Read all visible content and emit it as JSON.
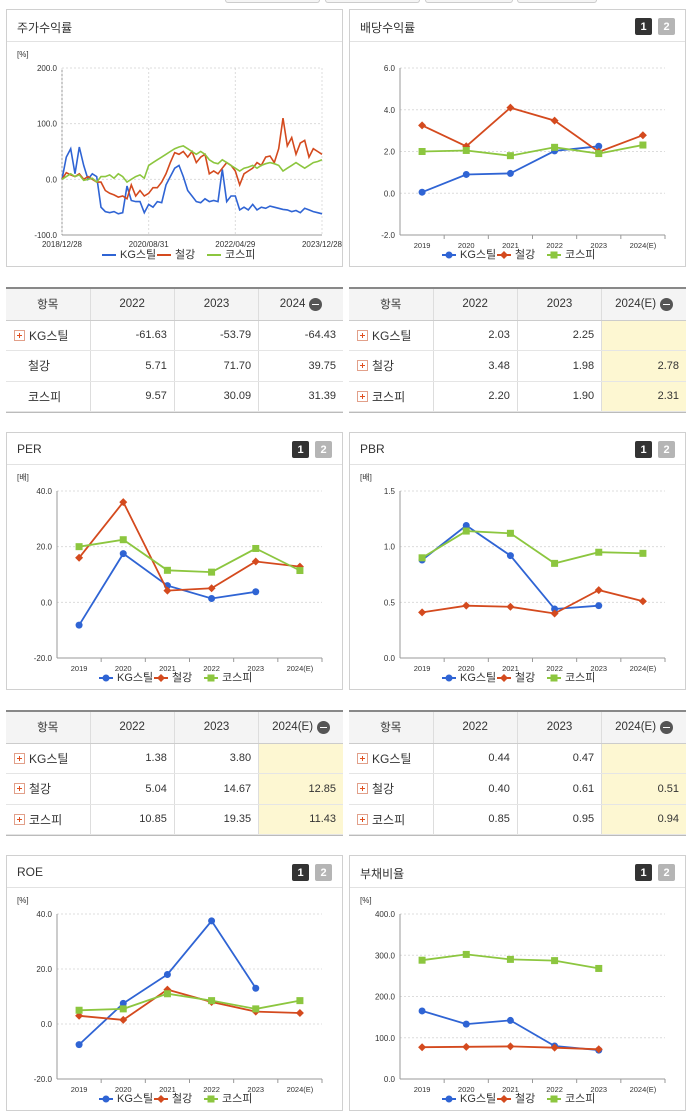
{
  "series_legend": [
    "KG스틸",
    "철강",
    "코스피"
  ],
  "colors": {
    "KG스틸": "#2f64d4",
    "철강": "#d44a1e",
    "코스피": "#8cc63f"
  },
  "panels": {
    "stock": {
      "title": "주가수익률"
    },
    "dividend": {
      "title": "배당수익률",
      "pages": [
        "1",
        "2"
      ]
    },
    "per": {
      "title": "PER",
      "pages": [
        "1",
        "2"
      ]
    },
    "pbr": {
      "title": "PBR",
      "pages": [
        "1",
        "2"
      ]
    },
    "roe": {
      "title": "ROE",
      "pages": [
        "1",
        "2"
      ]
    },
    "debt": {
      "title": "부채비율",
      "pages": [
        "1",
        "2"
      ]
    }
  },
  "tables": {
    "stock": {
      "headers": [
        "항목",
        "2022",
        "2023",
        "2024"
      ],
      "rows": [
        {
          "name": "KG스틸",
          "plus": true,
          "values": [
            "-61.63",
            "-53.79",
            "-64.43"
          ],
          "hl": false
        },
        {
          "name": "철강",
          "plus": false,
          "values": [
            "5.71",
            "71.70",
            "39.75"
          ],
          "hl": false
        },
        {
          "name": "코스피",
          "plus": false,
          "values": [
            "9.57",
            "30.09",
            "31.39"
          ],
          "hl": false
        }
      ]
    },
    "dividend": {
      "headers": [
        "항목",
        "2022",
        "2023",
        "2024(E)"
      ],
      "rows": [
        {
          "name": "KG스틸",
          "plus": true,
          "values": [
            "2.03",
            "2.25",
            ""
          ],
          "hl": true
        },
        {
          "name": "철강",
          "plus": true,
          "values": [
            "3.48",
            "1.98",
            "2.78"
          ],
          "hl": true
        },
        {
          "name": "코스피",
          "plus": true,
          "values": [
            "2.20",
            "1.90",
            "2.31"
          ],
          "hl": true
        }
      ]
    },
    "per": {
      "headers": [
        "항목",
        "2022",
        "2023",
        "2024(E)"
      ],
      "rows": [
        {
          "name": "KG스틸",
          "plus": true,
          "values": [
            "1.38",
            "3.80",
            ""
          ],
          "hl": true
        },
        {
          "name": "철강",
          "plus": true,
          "values": [
            "5.04",
            "14.67",
            "12.85"
          ],
          "hl": true
        },
        {
          "name": "코스피",
          "plus": true,
          "values": [
            "10.85",
            "19.35",
            "11.43"
          ],
          "hl": true
        }
      ]
    },
    "pbr": {
      "headers": [
        "항목",
        "2022",
        "2023",
        "2024(E)"
      ],
      "rows": [
        {
          "name": "KG스틸",
          "plus": true,
          "values": [
            "0.44",
            "0.47",
            ""
          ],
          "hl": true
        },
        {
          "name": "철강",
          "plus": true,
          "values": [
            "0.40",
            "0.61",
            "0.51"
          ],
          "hl": true
        },
        {
          "name": "코스피",
          "plus": true,
          "values": [
            "0.85",
            "0.95",
            "0.94"
          ],
          "hl": true
        }
      ]
    }
  },
  "chart_data": [
    {
      "id": "stock",
      "type": "line",
      "unit": "[%]",
      "ylim": [
        -100,
        200
      ],
      "yticks": [
        "200.0",
        "100.0",
        "0.0",
        "-100.0"
      ],
      "xticks": [
        "2018/12/28",
        "2020/08/31",
        "2022/04/29",
        "2023/12/28"
      ],
      "x_range": [
        0,
        60
      ],
      "series": [
        {
          "name": "KG스틸",
          "values": [
            0,
            40,
            55,
            10,
            58,
            25,
            0,
            10,
            5,
            -50,
            -58,
            -60,
            -58,
            -62,
            -60,
            -12,
            -38,
            -40,
            -40,
            -60,
            -45,
            -50,
            -40,
            -42,
            -10,
            5,
            20,
            25,
            5,
            -20,
            -30,
            -40,
            -42,
            -35,
            -40,
            -38,
            -40,
            18,
            -40,
            -30,
            -30,
            -55,
            -50,
            -55,
            -45,
            -55,
            -50,
            -52,
            -48,
            -50,
            -52,
            -54,
            -55,
            -58,
            -56,
            -60,
            -52,
            -55,
            -58,
            -60,
            -62
          ]
        },
        {
          "name": "철강",
          "values": [
            0,
            12,
            8,
            5,
            10,
            0,
            5,
            0,
            -5,
            -5,
            -20,
            -25,
            -28,
            -32,
            -30,
            -35,
            -10,
            -30,
            -20,
            -30,
            -25,
            -15,
            -15,
            -5,
            10,
            30,
            48,
            45,
            50,
            40,
            50,
            30,
            40,
            45,
            10,
            15,
            10,
            20,
            30,
            25,
            15,
            -10,
            10,
            15,
            20,
            30,
            25,
            40,
            42,
            30,
            55,
            110,
            60,
            75,
            45,
            65,
            70,
            40,
            55,
            50,
            45
          ]
        },
        {
          "name": "코스피",
          "values": [
            0,
            5,
            10,
            5,
            8,
            -2,
            0,
            2,
            -5,
            5,
            5,
            8,
            2,
            10,
            5,
            -5,
            0,
            5,
            8,
            2,
            25,
            30,
            35,
            40,
            45,
            50,
            55,
            58,
            60,
            55,
            50,
            45,
            50,
            45,
            35,
            30,
            28,
            35,
            30,
            25,
            20,
            15,
            20,
            22,
            25,
            20,
            25,
            28,
            30,
            28,
            25,
            15,
            20,
            25,
            30,
            25,
            20,
            25,
            30,
            32,
            35
          ]
        }
      ]
    },
    {
      "id": "dividend",
      "type": "line",
      "unit": "",
      "ylim": [
        -2,
        6
      ],
      "yticks": [
        "6.0",
        "4.0",
        "2.0",
        "0.0",
        "-2.0"
      ],
      "categories": [
        "2019",
        "2020",
        "2021",
        "2022",
        "2023",
        "2024(E)"
      ],
      "series": [
        {
          "name": "KG스틸",
          "values": [
            0.05,
            0.9,
            0.95,
            2.03,
            2.25,
            null
          ]
        },
        {
          "name": "철강",
          "values": [
            3.25,
            2.25,
            4.1,
            3.48,
            1.98,
            2.78
          ]
        },
        {
          "name": "코스피",
          "values": [
            2.0,
            2.05,
            1.8,
            2.2,
            1.9,
            2.31
          ]
        }
      ]
    },
    {
      "id": "per",
      "type": "line",
      "unit": "[배]",
      "ylim": [
        -20,
        40
      ],
      "yticks": [
        "40.0",
        "20.0",
        "0.0",
        "-20.0"
      ],
      "categories": [
        "2019",
        "2020",
        "2021",
        "2022",
        "2023",
        "2024(E)"
      ],
      "series": [
        {
          "name": "KG스틸",
          "values": [
            -8.2,
            17.5,
            6.0,
            1.38,
            3.8,
            null
          ]
        },
        {
          "name": "철강",
          "values": [
            16.0,
            36.0,
            4.2,
            5.04,
            14.67,
            12.85
          ]
        },
        {
          "name": "코스피",
          "values": [
            20.0,
            22.5,
            11.5,
            10.85,
            19.35,
            11.43
          ]
        }
      ]
    },
    {
      "id": "pbr",
      "type": "line",
      "unit": "[배]",
      "ylim": [
        0,
        1.5
      ],
      "yticks": [
        "1.5",
        "1.0",
        "0.5",
        "0.0"
      ],
      "categories": [
        "2019",
        "2020",
        "2021",
        "2022",
        "2023",
        "2024(E)"
      ],
      "series": [
        {
          "name": "KG스틸",
          "values": [
            0.88,
            1.19,
            0.92,
            0.44,
            0.47,
            null
          ]
        },
        {
          "name": "철강",
          "values": [
            0.41,
            0.47,
            0.46,
            0.4,
            0.61,
            0.51
          ]
        },
        {
          "name": "코스피",
          "values": [
            0.9,
            1.14,
            1.12,
            0.85,
            0.95,
            0.94
          ]
        }
      ]
    },
    {
      "id": "roe",
      "type": "line",
      "unit": "[%]",
      "ylim": [
        -20,
        40
      ],
      "yticks": [
        "40.0",
        "20.0",
        "0.0",
        "-20.0"
      ],
      "categories": [
        "2019",
        "2020",
        "2021",
        "2022",
        "2023",
        "2024(E)"
      ],
      "series": [
        {
          "name": "KG스틸",
          "values": [
            -7.5,
            7.5,
            18.0,
            37.5,
            13.0,
            null
          ]
        },
        {
          "name": "철강",
          "values": [
            3.0,
            1.5,
            12.5,
            8.0,
            4.5,
            4.0
          ]
        },
        {
          "name": "코스피",
          "values": [
            5.0,
            5.5,
            11.0,
            8.5,
            5.5,
            8.5
          ]
        }
      ]
    },
    {
      "id": "debt",
      "type": "line",
      "unit": "[%]",
      "ylim": [
        0,
        400
      ],
      "yticks": [
        "400.0",
        "300.0",
        "200.0",
        "100.0",
        "0.0"
      ],
      "categories": [
        "2019",
        "2020",
        "2021",
        "2022",
        "2023",
        "2024(E)"
      ],
      "series": [
        {
          "name": "KG스틸",
          "values": [
            165,
            133,
            142,
            80,
            70,
            null
          ]
        },
        {
          "name": "철강",
          "values": [
            77,
            78,
            79,
            76,
            72,
            null
          ]
        },
        {
          "name": "코스피",
          "values": [
            288,
            302,
            290,
            287,
            268,
            null
          ]
        }
      ]
    }
  ]
}
